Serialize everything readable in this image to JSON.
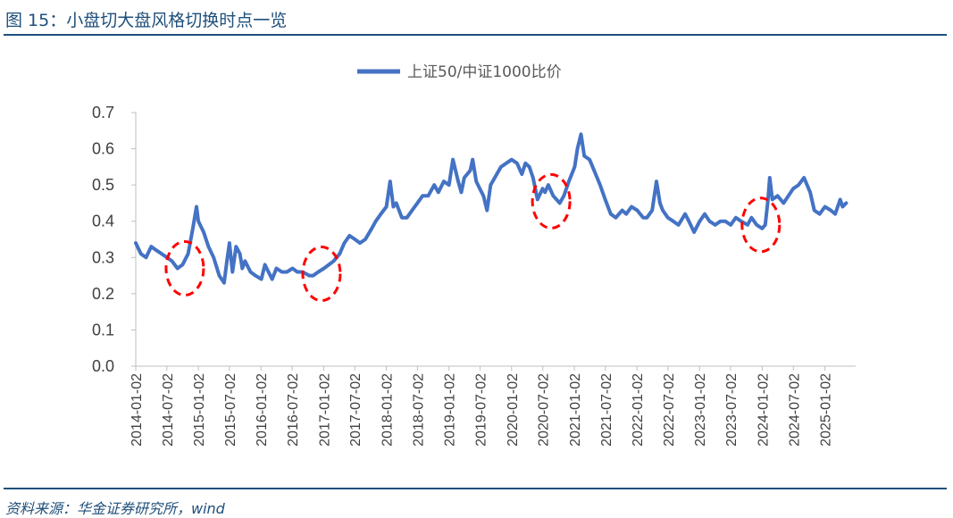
{
  "header": {
    "title": "图 15：小盘切大盘风格切换时点一览"
  },
  "footer": {
    "source": "资料来源：华金证券研究所，wind"
  },
  "colors": {
    "series": "#4472c4",
    "marker": "#ff0000",
    "accent": "#1f4f7a"
  },
  "chart_data": {
    "type": "line",
    "title": "",
    "xlabel": "",
    "ylabel": "",
    "ylim": [
      0,
      0.7
    ],
    "yticks": [
      "0.0",
      "0.1",
      "0.2",
      "0.3",
      "0.4",
      "0.5",
      "0.6",
      "0.7"
    ],
    "xticks": [
      "2014-01-02",
      "2014-07-02",
      "2015-01-02",
      "2015-07-02",
      "2016-01-02",
      "2016-07-02",
      "2017-01-02",
      "2017-07-02",
      "2018-01-02",
      "2018-07-02",
      "2019-01-02",
      "2019-07-02",
      "2020-01-02",
      "2020-07-02",
      "2021-01-02",
      "2021-07-02",
      "2022-01-02",
      "2022-07-02",
      "2023-01-02",
      "2023-07-02",
      "2024-01-02",
      "2024-07-02",
      "2025-01-02"
    ],
    "grid": false,
    "legend": "top-center",
    "series": [
      {
        "name": "上证50/中证1000比价",
        "points": [
          [
            "2014-01-02",
            0.34
          ],
          [
            "2014-02-01",
            0.31
          ],
          [
            "2014-03-03",
            0.3
          ],
          [
            "2014-04-02",
            0.33
          ],
          [
            "2014-05-02",
            0.32
          ],
          [
            "2014-06-02",
            0.31
          ],
          [
            "2014-07-02",
            0.3
          ],
          [
            "2014-08-01",
            0.29
          ],
          [
            "2014-09-02",
            0.27
          ],
          [
            "2014-10-02",
            0.28
          ],
          [
            "2014-11-03",
            0.31
          ],
          [
            "2014-12-01",
            0.38
          ],
          [
            "2014-12-22",
            0.44
          ],
          [
            "2015-01-02",
            0.4
          ],
          [
            "2015-02-02",
            0.37
          ],
          [
            "2015-03-02",
            0.33
          ],
          [
            "2015-04-01",
            0.3
          ],
          [
            "2015-05-04",
            0.25
          ],
          [
            "2015-06-01",
            0.23
          ],
          [
            "2015-06-20",
            0.3
          ],
          [
            "2015-07-02",
            0.34
          ],
          [
            "2015-07-20",
            0.26
          ],
          [
            "2015-08-10",
            0.33
          ],
          [
            "2015-09-01",
            0.31
          ],
          [
            "2015-09-15",
            0.27
          ],
          [
            "2015-10-01",
            0.29
          ],
          [
            "2015-11-02",
            0.26
          ],
          [
            "2015-12-01",
            0.25
          ],
          [
            "2016-01-04",
            0.24
          ],
          [
            "2016-01-25",
            0.28
          ],
          [
            "2016-02-15",
            0.26
          ],
          [
            "2016-03-07",
            0.24
          ],
          [
            "2016-04-01",
            0.27
          ],
          [
            "2016-05-03",
            0.26
          ],
          [
            "2016-06-01",
            0.26
          ],
          [
            "2016-07-04",
            0.27
          ],
          [
            "2016-08-01",
            0.26
          ],
          [
            "2016-09-01",
            0.26
          ],
          [
            "2016-10-10",
            0.25
          ],
          [
            "2016-11-01",
            0.25
          ],
          [
            "2016-12-01",
            0.26
          ],
          [
            "2017-01-03",
            0.27
          ],
          [
            "2017-02-01",
            0.28
          ],
          [
            "2017-03-01",
            0.29
          ],
          [
            "2017-04-05",
            0.31
          ],
          [
            "2017-05-02",
            0.34
          ],
          [
            "2017-06-01",
            0.36
          ],
          [
            "2017-07-03",
            0.35
          ],
          [
            "2017-08-01",
            0.34
          ],
          [
            "2017-09-01",
            0.35
          ],
          [
            "2017-10-09",
            0.38
          ],
          [
            "2017-11-01",
            0.4
          ],
          [
            "2017-12-01",
            0.42
          ],
          [
            "2018-01-02",
            0.44
          ],
          [
            "2018-01-24",
            0.51
          ],
          [
            "2018-02-12",
            0.44
          ],
          [
            "2018-03-01",
            0.45
          ],
          [
            "2018-04-02",
            0.41
          ],
          [
            "2018-05-02",
            0.41
          ],
          [
            "2018-06-01",
            0.43
          ],
          [
            "2018-07-02",
            0.45
          ],
          [
            "2018-08-01",
            0.47
          ],
          [
            "2018-09-03",
            0.47
          ],
          [
            "2018-10-08",
            0.5
          ],
          [
            "2018-11-01",
            0.48
          ],
          [
            "2018-12-03",
            0.51
          ],
          [
            "2019-01-02",
            0.5
          ],
          [
            "2019-01-25",
            0.57
          ],
          [
            "2019-02-25",
            0.51
          ],
          [
            "2019-03-15",
            0.48
          ],
          [
            "2019-04-01",
            0.52
          ],
          [
            "2019-05-06",
            0.54
          ],
          [
            "2019-05-20",
            0.57
          ],
          [
            "2019-06-10",
            0.51
          ],
          [
            "2019-07-01",
            0.49
          ],
          [
            "2019-07-22",
            0.47
          ],
          [
            "2019-08-12",
            0.43
          ],
          [
            "2019-09-02",
            0.5
          ],
          [
            "2019-10-08",
            0.53
          ],
          [
            "2019-11-01",
            0.55
          ],
          [
            "2019-12-02",
            0.56
          ],
          [
            "2020-01-02",
            0.57
          ],
          [
            "2020-02-03",
            0.56
          ],
          [
            "2020-03-02",
            0.53
          ],
          [
            "2020-03-23",
            0.56
          ],
          [
            "2020-04-15",
            0.55
          ],
          [
            "2020-05-06",
            0.52
          ],
          [
            "2020-06-01",
            0.46
          ],
          [
            "2020-07-01",
            0.49
          ],
          [
            "2020-07-15",
            0.48
          ],
          [
            "2020-08-03",
            0.5
          ],
          [
            "2020-09-01",
            0.47
          ],
          [
            "2020-10-09",
            0.45
          ],
          [
            "2020-11-02",
            0.47
          ],
          [
            "2020-12-01",
            0.51
          ],
          [
            "2021-01-04",
            0.55
          ],
          [
            "2021-01-20",
            0.6
          ],
          [
            "2021-02-10",
            0.64
          ],
          [
            "2021-03-01",
            0.58
          ],
          [
            "2021-04-01",
            0.57
          ],
          [
            "2021-05-06",
            0.53
          ],
          [
            "2021-06-01",
            0.5
          ],
          [
            "2021-07-01",
            0.46
          ],
          [
            "2021-08-02",
            0.42
          ],
          [
            "2021-09-01",
            0.41
          ],
          [
            "2021-10-08",
            0.43
          ],
          [
            "2021-11-01",
            0.42
          ],
          [
            "2021-12-01",
            0.44
          ],
          [
            "2022-01-04",
            0.43
          ],
          [
            "2022-02-07",
            0.41
          ],
          [
            "2022-03-01",
            0.41
          ],
          [
            "2022-04-01",
            0.43
          ],
          [
            "2022-04-26",
            0.51
          ],
          [
            "2022-05-16",
            0.45
          ],
          [
            "2022-06-01",
            0.43
          ],
          [
            "2022-07-01",
            0.41
          ],
          [
            "2022-08-01",
            0.4
          ],
          [
            "2022-09-01",
            0.39
          ],
          [
            "2022-10-10",
            0.42
          ],
          [
            "2022-11-01",
            0.4
          ],
          [
            "2022-12-01",
            0.37
          ],
          [
            "2023-01-03",
            0.4
          ],
          [
            "2023-02-01",
            0.42
          ],
          [
            "2023-03-01",
            0.4
          ],
          [
            "2023-04-03",
            0.39
          ],
          [
            "2023-05-04",
            0.4
          ],
          [
            "2023-06-01",
            0.4
          ],
          [
            "2023-07-03",
            0.39
          ],
          [
            "2023-08-01",
            0.41
          ],
          [
            "2023-09-01",
            0.4
          ],
          [
            "2023-10-09",
            0.39
          ],
          [
            "2023-11-01",
            0.41
          ],
          [
            "2023-12-01",
            0.39
          ],
          [
            "2024-01-02",
            0.38
          ],
          [
            "2024-01-20",
            0.39
          ],
          [
            "2024-02-05",
            0.46
          ],
          [
            "2024-02-15",
            0.52
          ],
          [
            "2024-03-01",
            0.46
          ],
          [
            "2024-04-01",
            0.47
          ],
          [
            "2024-05-06",
            0.45
          ],
          [
            "2024-06-03",
            0.47
          ],
          [
            "2024-07-01",
            0.49
          ],
          [
            "2024-08-01",
            0.5
          ],
          [
            "2024-09-02",
            0.52
          ],
          [
            "2024-10-08",
            0.48
          ],
          [
            "2024-11-01",
            0.43
          ],
          [
            "2024-12-02",
            0.42
          ],
          [
            "2025-01-02",
            0.44
          ],
          [
            "2025-02-05",
            0.43
          ],
          [
            "2025-03-03",
            0.42
          ],
          [
            "2025-04-01",
            0.46
          ],
          [
            "2025-04-15",
            0.44
          ],
          [
            "2025-05-06",
            0.45
          ]
        ]
      }
    ],
    "highlights": [
      {
        "x": "2014-10-15",
        "y": 0.27
      },
      {
        "x": "2016-12-20",
        "y": 0.255
      },
      {
        "x": "2020-08-20",
        "y": 0.455
      },
      {
        "x": "2023-12-25",
        "y": 0.39
      }
    ]
  }
}
